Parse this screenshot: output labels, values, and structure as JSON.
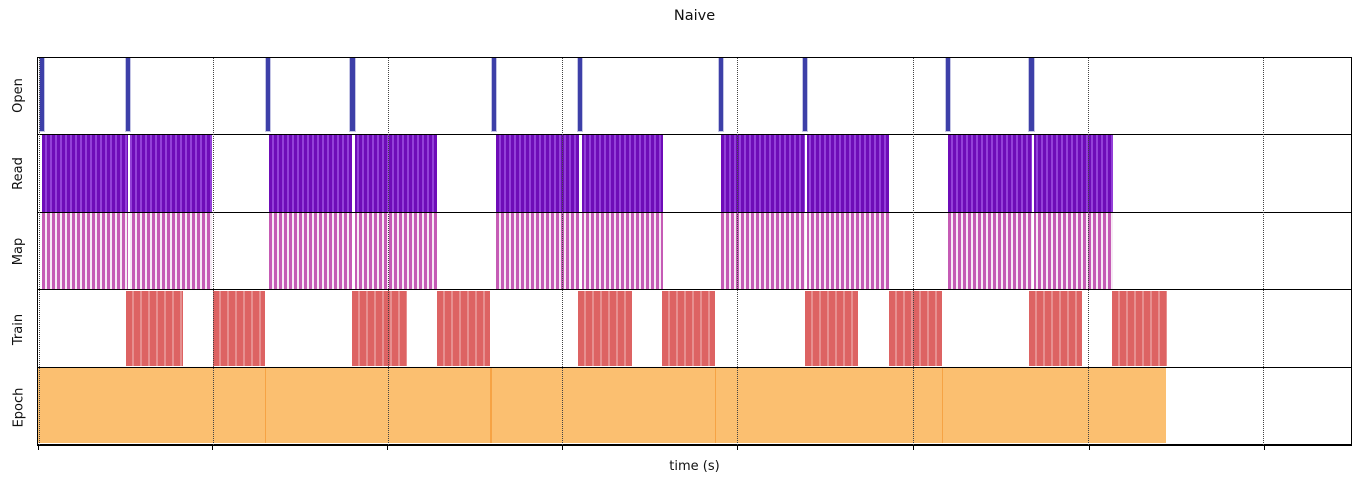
{
  "chart_data": {
    "type": "broken_barh_timeline",
    "title": "Naive",
    "xlabel": "time (s)",
    "rows": [
      "Open",
      "Read",
      "Map",
      "Train",
      "Epoch"
    ],
    "x_axis": {
      "tick_labels": [],
      "tick_positions_pct": [
        0.05,
        13.31,
        26.62,
        39.92,
        53.23,
        66.62,
        80.0,
        93.31
      ],
      "gridline_style": "dotted",
      "note": "no numeric tick labels visible; ticks evenly spaced"
    },
    "legend": "none",
    "colors": {
      "open": "#3d3fa8",
      "read-dark": "#6e0cb8",
      "read-light": "#9340d8",
      "map": "#c55bb5",
      "map-light": "#f7eaf5",
      "train": "#dd6363",
      "train-light": "#e79090",
      "epoch": "#fbbf70",
      "epoch-sep": "#f6a344",
      "grid": "#444444",
      "frame": "#000000"
    },
    "series": {
      "open": {
        "label": "Open",
        "style": "thin vertical bars",
        "bar_width_pct": 0.32,
        "positions_pct": [
          0.3,
          6.84,
          17.49,
          23.95,
          34.75,
          41.29,
          52.02,
          58.4,
          69.28,
          75.67
        ]
      },
      "read": {
        "label": "Read",
        "style": "dense striped blocks",
        "blocks_pct": [
          [
            0.3,
            13.23
          ],
          [
            17.57,
            30.42
          ],
          [
            34.9,
            47.6
          ],
          [
            52.02,
            64.79
          ],
          [
            69.28,
            81.9
          ]
        ],
        "separators_pct": [
          6.84,
          23.95,
          41.22,
          58.4,
          75.67
        ]
      },
      "map": {
        "label": "Map",
        "style": "dense striped blocks",
        "blocks_pct": [
          [
            0.3,
            13.23
          ],
          [
            17.57,
            30.42
          ],
          [
            34.9,
            47.6
          ],
          [
            52.02,
            64.79
          ],
          [
            69.28,
            81.9
          ]
        ],
        "separators_pct": [
          6.84,
          23.95,
          41.22,
          58.4,
          75.67
        ]
      },
      "train": {
        "label": "Train",
        "style": "striped blocks",
        "blocks_pct": [
          [
            6.69,
            11.03
          ],
          [
            13.31,
            17.26
          ],
          [
            23.95,
            28.14
          ],
          [
            30.42,
            34.45
          ],
          [
            41.14,
            45.25
          ],
          [
            47.53,
            51.56
          ],
          [
            58.4,
            62.43
          ],
          [
            64.79,
            68.82
          ],
          [
            75.51,
            79.54
          ],
          [
            81.83,
            86.01
          ]
        ]
      },
      "epoch": {
        "label": "Epoch",
        "style": "solid block",
        "blocks_pct": [
          [
            0.0,
            85.93
          ]
        ],
        "separators_pct": [
          17.26,
          34.45,
          51.56,
          68.82
        ]
      }
    }
  }
}
